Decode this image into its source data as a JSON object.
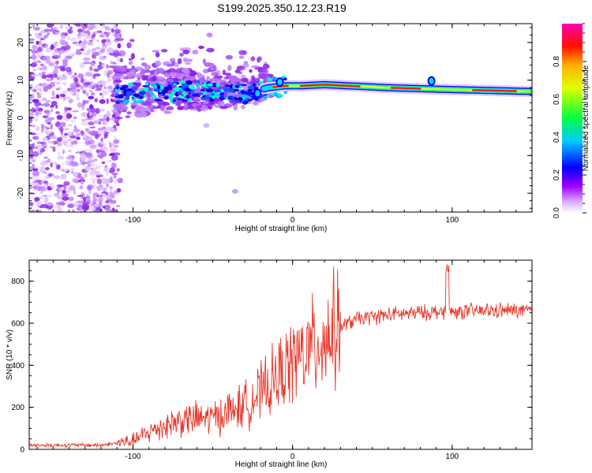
{
  "figure": {
    "title": "S199.2025.350.12.23.R19"
  },
  "chart_data": [
    {
      "type": "heatmap",
      "xlabel": "Height of straight line (km)",
      "ylabel": "Frequency (Hz)",
      "xlim": [
        -165,
        150
      ],
      "ylim": [
        -25,
        25
      ],
      "x_ticks": [
        -100,
        0,
        100
      ],
      "y_ticks": [
        -20,
        -10,
        0,
        10,
        20
      ],
      "colorbar": {
        "label": "Normalized spectral amplitude",
        "range": [
          0,
          1
        ],
        "ticks": [
          0.0,
          0.2,
          0.4,
          0.6,
          0.8
        ],
        "colors": [
          "#ffffff",
          "#b000ff",
          "#0000ff",
          "#00ffff",
          "#00ff00",
          "#ffff00",
          "#ff0000",
          "#ff00aa"
        ]
      },
      "ridge": {
        "description_points": [
          {
            "x": -110,
            "y": 6.5
          },
          {
            "x": -80,
            "y": 7.0
          },
          {
            "x": -50,
            "y": 7.0
          },
          {
            "x": -30,
            "y": 6.5
          },
          {
            "x": -15,
            "y": 8.0
          },
          {
            "x": -5,
            "y": 8.5
          },
          {
            "x": 5,
            "y": 8.5
          },
          {
            "x": 20,
            "y": 8.8
          },
          {
            "x": 60,
            "y": 8.0
          },
          {
            "x": 100,
            "y": 7.5
          },
          {
            "x": 150,
            "y": 7.0
          }
        ]
      }
    },
    {
      "type": "line",
      "xlabel": "Height of straight line (km)",
      "ylabel": "SNR (10 * v/v)",
      "xlim": [
        -165,
        150
      ],
      "ylim": [
        0,
        900
      ],
      "x_ticks": [
        -100,
        0,
        100
      ],
      "y_ticks": [
        0,
        200,
        400,
        600,
        800
      ],
      "color": "#e8382c",
      "trend_points": [
        {
          "x": -165,
          "y": 20
        },
        {
          "x": -120,
          "y": 20
        },
        {
          "x": -100,
          "y": 40
        },
        {
          "x": -85,
          "y": 100
        },
        {
          "x": -70,
          "y": 140
        },
        {
          "x": -50,
          "y": 150
        },
        {
          "x": -30,
          "y": 210
        },
        {
          "x": -15,
          "y": 300
        },
        {
          "x": 0,
          "y": 420
        },
        {
          "x": 10,
          "y": 470
        },
        {
          "x": 25,
          "y": 560
        },
        {
          "x": 40,
          "y": 620
        },
        {
          "x": 60,
          "y": 640
        },
        {
          "x": 80,
          "y": 650
        },
        {
          "x": 100,
          "y": 655
        },
        {
          "x": 125,
          "y": 660
        },
        {
          "x": 150,
          "y": 660
        }
      ]
    }
  ]
}
